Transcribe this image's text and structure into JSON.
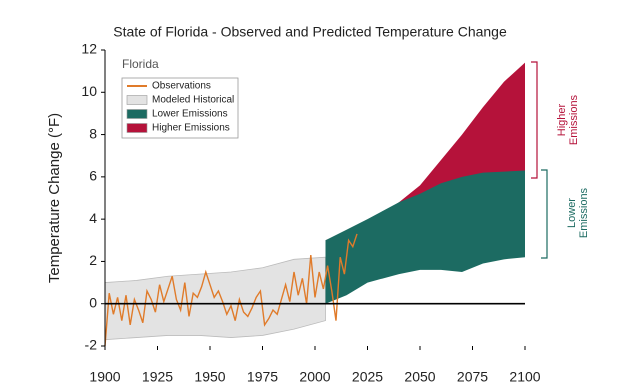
{
  "chart_data": {
    "type": "line",
    "title": "State of Florida - Observed and Predicted Temperature Change",
    "panel_label": "Florida",
    "y_label": "Temperature Change (°F)",
    "xlim": [
      1900,
      2100
    ],
    "xticks": [
      1900,
      1925,
      1950,
      1975,
      2000,
      2025,
      2050,
      2075,
      2100
    ],
    "ylim": [
      -2,
      12
    ],
    "yticks": [
      -2,
      0,
      2,
      4,
      6,
      8,
      10,
      12
    ],
    "grid": false,
    "legend": "upper left",
    "series": [
      {
        "name": "Observations",
        "style": "line",
        "color": "#e07b2a",
        "x": [
          1900,
          1902,
          1904,
          1906,
          1908,
          1910,
          1912,
          1914,
          1916,
          1918,
          1920,
          1922,
          1924,
          1926,
          1928,
          1930,
          1932,
          1934,
          1936,
          1938,
          1940,
          1942,
          1944,
          1946,
          1948,
          1950,
          1952,
          1954,
          1956,
          1958,
          1960,
          1962,
          1964,
          1966,
          1968,
          1970,
          1972,
          1974,
          1976,
          1978,
          1980,
          1982,
          1984,
          1986,
          1988,
          1990,
          1992,
          1994,
          1996,
          1998,
          2000,
          2002,
          2004,
          2006,
          2008,
          2010,
          2012,
          2014,
          2016,
          2018,
          2020
        ],
        "values": [
          -2.0,
          0.5,
          -0.5,
          0.3,
          -0.8,
          0.4,
          -1.0,
          0.2,
          -0.3,
          -0.9,
          0.6,
          0.2,
          -0.4,
          0.9,
          0.1,
          0.7,
          1.3,
          0.2,
          -0.3,
          1.0,
          -0.6,
          0.5,
          0.3,
          0.8,
          1.5,
          0.9,
          0.3,
          0.6,
          0.1,
          -0.5,
          -0.1,
          -0.8,
          0.2,
          -0.4,
          -0.6,
          -0.2,
          0.3,
          0.6,
          -1.0,
          -0.7,
          -0.3,
          -0.5,
          0.2,
          0.9,
          0.1,
          1.5,
          0.4,
          1.2,
          0.0,
          2.3,
          0.3,
          1.5,
          0.7,
          1.8,
          0.6,
          -0.8,
          2.2,
          1.4,
          3.0,
          2.7,
          3.3
        ]
      },
      {
        "name": "Modeled Historical",
        "style": "band",
        "color": "#e3e3e3",
        "x": [
          1900,
          1915,
          1930,
          1945,
          1960,
          1975,
          1990,
          2005
        ],
        "upper": [
          1.0,
          1.1,
          1.3,
          1.4,
          1.5,
          1.7,
          2.1,
          2.2
        ],
        "lower": [
          -1.7,
          -1.6,
          -1.5,
          -1.5,
          -1.6,
          -1.5,
          -1.2,
          -0.8
        ]
      },
      {
        "name": "Lower Emissions",
        "style": "band",
        "color": "#1c6b62",
        "x": [
          2005,
          2015,
          2025,
          2040,
          2050,
          2060,
          2070,
          2080,
          2090,
          2100
        ],
        "upper": [
          3.0,
          3.5,
          4.0,
          4.8,
          5.2,
          5.7,
          6.0,
          6.2,
          6.25,
          6.3
        ],
        "lower": [
          0.0,
          0.4,
          1.0,
          1.4,
          1.6,
          1.6,
          1.5,
          1.9,
          2.1,
          2.2
        ]
      },
      {
        "name": "Higher Emissions",
        "style": "band",
        "color": "#b5123a",
        "x": [
          2005,
          2015,
          2025,
          2040,
          2050,
          2060,
          2070,
          2080,
          2090,
          2100
        ],
        "upper": [
          3.0,
          3.4,
          3.8,
          4.8,
          5.6,
          6.8,
          8.0,
          9.3,
          10.5,
          11.4
        ],
        "lower": [
          0.0,
          1.0,
          2.0,
          3.0,
          3.5,
          4.0,
          4.5,
          5.0,
          5.5,
          6.0
        ]
      }
    ],
    "annotations": [
      {
        "lines": [
          "Higher",
          "Emissions"
        ],
        "color": "#b5123a"
      },
      {
        "lines": [
          "Lower",
          "Emissions"
        ],
        "color": "#1c6b62"
      }
    ]
  }
}
